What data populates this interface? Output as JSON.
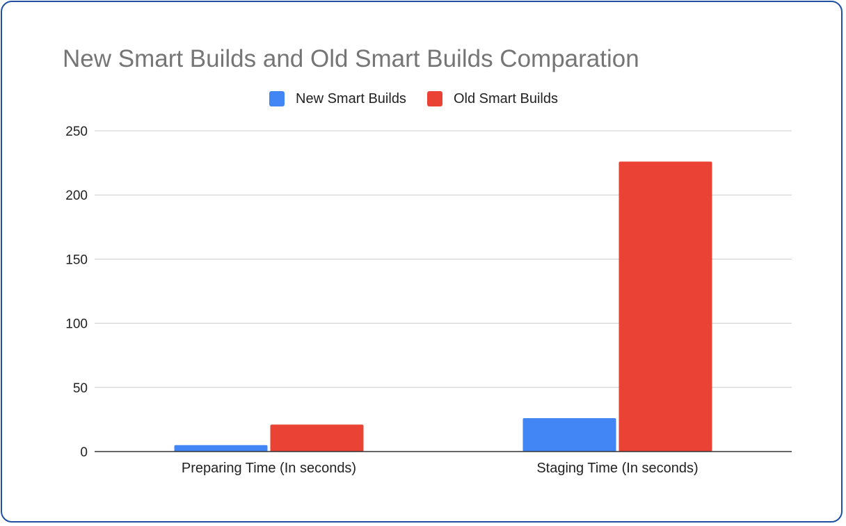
{
  "chart_data": {
    "type": "bar",
    "title": "New Smart Builds and Old Smart Builds Comparation",
    "xlabel": "",
    "ylabel": "",
    "categories": [
      "Preparing Time (In seconds)",
      "Staging Time (In seconds)"
    ],
    "series": [
      {
        "name": "New Smart Builds",
        "color": "#4285f4",
        "values": [
          5,
          26
        ]
      },
      {
        "name": "Old Smart Builds",
        "color": "#ea4335",
        "values": [
          21,
          226
        ]
      }
    ],
    "ylim": [
      0,
      250
    ],
    "yticks": [
      "0",
      "50",
      "100",
      "150",
      "200",
      "250"
    ],
    "grid": true,
    "legend_position": "top"
  }
}
